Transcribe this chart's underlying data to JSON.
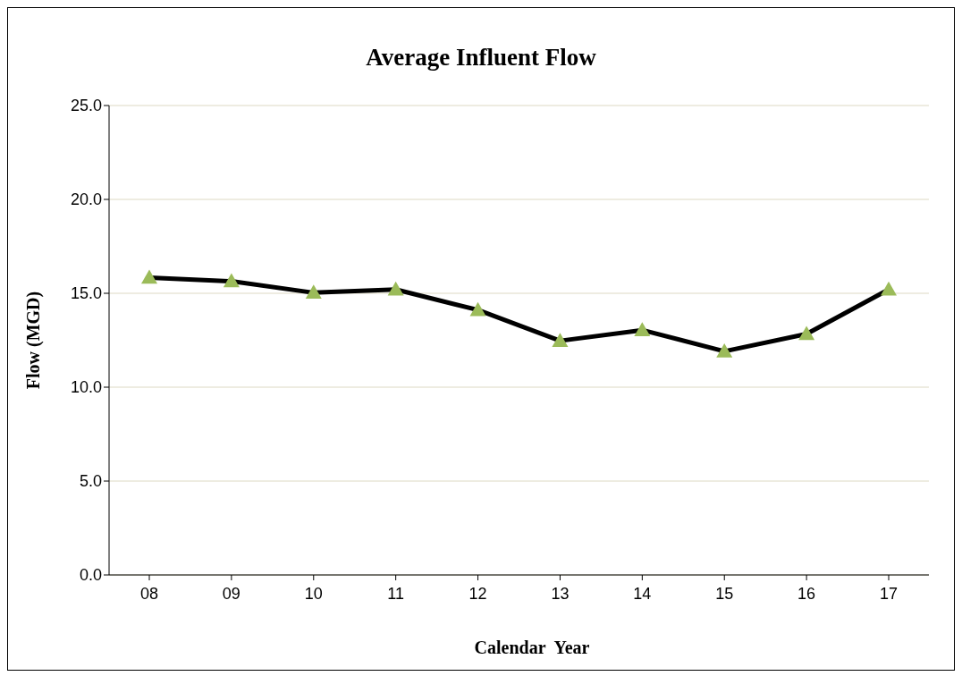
{
  "chart_data": {
    "type": "line",
    "title": "Average Influent Flow",
    "xlabel": "Calendar  Year",
    "ylabel": "Flow (MGD)",
    "categories": [
      "08",
      "09",
      "10",
      "11",
      "12",
      "13",
      "14",
      "15",
      "16",
      "17"
    ],
    "series": [
      {
        "color": "#000000",
        "colors": [
          "#9bbb59",
          "#9bbb59",
          "#9bbb59",
          "#9bbb59",
          "#9bbb59",
          "#9bbb59",
          "#9bbb59",
          "#9bbb59",
          "#9bbb59",
          "#9bbb59"
        ],
        "values": [
          15.83,
          15.64,
          15.03,
          15.2,
          14.11,
          12.47,
          13.04,
          11.91,
          12.83,
          15.2
        ]
      }
    ],
    "marker": "triangle",
    "line_style": "solid",
    "ylim": [
      0,
      25
    ],
    "yticks": [
      {
        "value": 0,
        "label": "0.0"
      },
      {
        "value": 5,
        "label": "5.0"
      },
      {
        "value": 10,
        "label": "10.0"
      },
      {
        "value": 15,
        "label": "15.0"
      },
      {
        "value": 20,
        "label": "20.0"
      },
      {
        "value": 25,
        "label": "25.0"
      }
    ],
    "grid": "y",
    "legend": false
  }
}
